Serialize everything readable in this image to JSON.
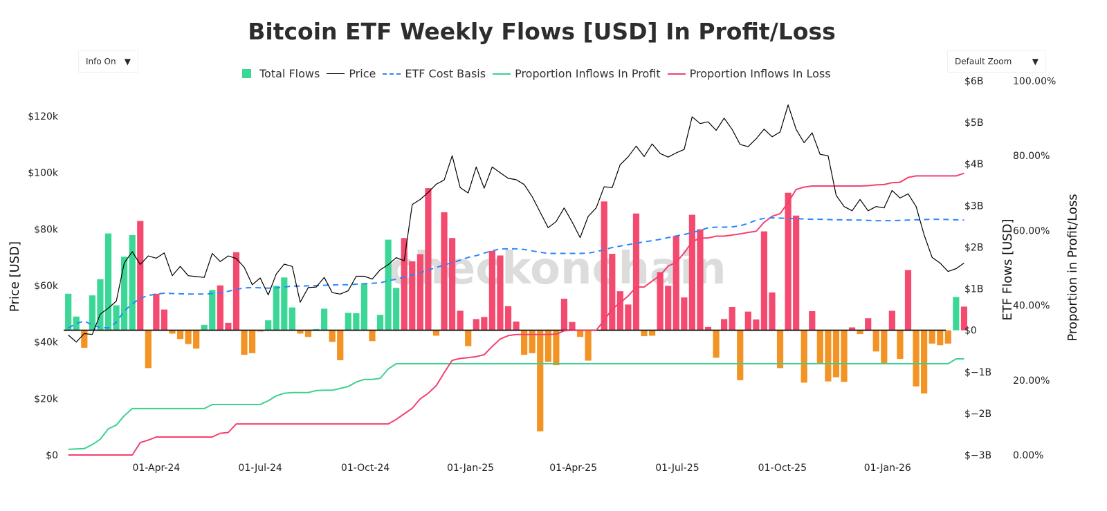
{
  "title": "Bitcoin ETF Weekly Flows [USD] In Profit/Loss",
  "controls": {
    "info": {
      "label": "Info On",
      "icon": "triangle-down-icon"
    },
    "zoom": {
      "label": "Default Zoom",
      "icon": "triangle-down-icon"
    }
  },
  "legend": [
    "Total Flows",
    "Price",
    "ETF Cost Basis",
    "Proportion Inflows In Profit",
    "Proportion Inflows In Loss"
  ],
  "watermark": "checkonchain",
  "colors": {
    "green": "#3ad796",
    "red": "#f44a6f",
    "orange": "#f39324",
    "price": "#000000",
    "cost_basis": "#2a86ff",
    "profit_line": "#3bd18f",
    "loss_line": "#f43f6d"
  },
  "chart_data": {
    "type": "bar+line",
    "title": "Bitcoin ETF Weekly Flows [USD] In Profit/Loss",
    "axes": {
      "y_left": {
        "label": "Price [USD]",
        "unit": "k",
        "ticks": [
          "$0",
          "$20k",
          "$40k",
          "$60k",
          "$80k",
          "$100k",
          "$120k"
        ],
        "tick_values": [
          0,
          20,
          40,
          60,
          80,
          100,
          120
        ],
        "range": [
          0,
          132.5
        ]
      },
      "y_right": {
        "label": "ETF Flows [USD]",
        "unit": "B",
        "ticks": [
          "$−3B",
          "$−2B",
          "$−1B",
          "$0",
          "$1B",
          "$2B",
          "$3B",
          "$4B",
          "$5B",
          "$6B"
        ],
        "tick_values": [
          -3,
          -2,
          -1,
          0,
          1,
          2,
          3,
          4,
          5,
          6
        ],
        "range": [
          -3,
          6
        ]
      },
      "y_right2": {
        "label": "Proportion in Profit/Loss",
        "ticks": [
          "0.00%",
          "20.00%",
          "40.00%",
          "60.00%",
          "80.00%",
          "100.00%"
        ],
        "tick_values": [
          0,
          20,
          40,
          60,
          80,
          100
        ],
        "range": [
          0,
          100
        ]
      },
      "x": {
        "ticks": [
          "01-Apr-24",
          "01-Jul-24",
          "01-Oct-24",
          "01-Jan-25",
          "01-Apr-25",
          "01-Jul-25",
          "01-Oct-25",
          "01-Jan-26"
        ],
        "tick_dates": [
          "2024-04-01",
          "2024-07-01",
          "2024-10-01",
          "2025-01-01",
          "2025-04-01",
          "2025-07-01",
          "2025-10-01",
          "2026-01-01"
        ]
      }
    },
    "x": [
      "2024-01-15",
      "2024-01-22",
      "2024-01-29",
      "2024-02-05",
      "2024-02-12",
      "2024-02-19",
      "2024-02-26",
      "2024-03-04",
      "2024-03-11",
      "2024-03-18",
      "2024-03-25",
      "2024-04-01",
      "2024-04-08",
      "2024-04-15",
      "2024-04-22",
      "2024-04-29",
      "2024-05-06",
      "2024-05-13",
      "2024-05-20",
      "2024-05-27",
      "2024-06-03",
      "2024-06-10",
      "2024-06-17",
      "2024-06-24",
      "2024-07-01",
      "2024-07-08",
      "2024-07-15",
      "2024-07-22",
      "2024-07-29",
      "2024-08-05",
      "2024-08-12",
      "2024-08-19",
      "2024-08-26",
      "2024-09-02",
      "2024-09-09",
      "2024-09-16",
      "2024-09-23",
      "2024-09-30",
      "2024-10-07",
      "2024-10-14",
      "2024-10-21",
      "2024-10-28",
      "2024-11-04",
      "2024-11-11",
      "2024-11-18",
      "2024-11-25",
      "2024-12-02",
      "2024-12-09",
      "2024-12-16",
      "2024-12-23",
      "2024-12-30",
      "2025-01-06",
      "2025-01-13",
      "2025-01-20",
      "2025-01-27",
      "2025-02-03",
      "2025-02-10",
      "2025-02-17",
      "2025-02-24",
      "2025-03-03",
      "2025-03-10",
      "2025-03-17",
      "2025-03-24",
      "2025-03-31",
      "2025-04-07",
      "2025-04-14",
      "2025-04-21",
      "2025-04-28",
      "2025-05-05",
      "2025-05-12",
      "2025-05-19",
      "2025-05-26",
      "2025-06-02",
      "2025-06-09",
      "2025-06-16",
      "2025-06-23",
      "2025-06-30",
      "2025-07-07",
      "2025-07-14",
      "2025-07-21",
      "2025-07-28",
      "2025-08-04",
      "2025-08-11",
      "2025-08-18",
      "2025-08-25",
      "2025-09-01",
      "2025-09-08",
      "2025-09-15",
      "2025-09-22",
      "2025-09-29",
      "2025-10-06",
      "2025-10-13",
      "2025-10-20",
      "2025-10-27",
      "2025-11-03",
      "2025-11-10",
      "2025-11-17",
      "2025-11-24",
      "2025-12-01",
      "2025-12-08",
      "2025-12-15",
      "2025-12-22",
      "2025-12-29",
      "2026-01-05",
      "2026-01-12",
      "2026-01-19",
      "2026-01-26",
      "2026-02-02",
      "2026-02-09",
      "2026-02-16",
      "2026-02-23",
      "2026-03-02",
      "2026-03-09"
    ],
    "series": [
      {
        "name": "Total Flows",
        "type": "bar",
        "axis": "y_right",
        "values": [
          0.88,
          0.33,
          -0.42,
          0.84,
          1.23,
          2.33,
          0.6,
          1.77,
          2.29,
          2.63,
          -0.91,
          0.88,
          0.5,
          -0.08,
          -0.21,
          -0.33,
          -0.44,
          0.13,
          0.97,
          1.08,
          0.18,
          1.88,
          -0.59,
          -0.55,
          -0.03,
          0.24,
          1.07,
          1.27,
          0.55,
          -0.08,
          -0.16,
          0.03,
          0.52,
          -0.28,
          -0.72,
          0.42,
          0.41,
          1.13,
          -0.26,
          0.37,
          2.18,
          1.02,
          2.22,
          1.66,
          1.83,
          3.42,
          -0.13,
          2.84,
          2.22,
          0.47,
          -0.38,
          0.27,
          0.32,
          1.91,
          1.8,
          0.58,
          0.21,
          -0.59,
          -0.55,
          -2.43,
          -0.76,
          -0.84,
          0.76,
          0.2,
          -0.16,
          -0.73,
          0,
          3.1,
          1.84,
          0.94,
          0.62,
          2.81,
          -0.14,
          -0.13,
          1.4,
          1.07,
          2.27,
          0.79,
          2.78,
          2.43,
          0.08,
          -0.66,
          0.27,
          0.56,
          -1.2,
          0.45,
          0.26,
          2.38,
          0.91,
          -0.91,
          3.31,
          2.76,
          -1.26,
          0.46,
          -0.8,
          -1.23,
          -1.13,
          -1.24,
          0.07,
          -0.09,
          0.29,
          -0.51,
          -0.8,
          0.47,
          -0.69,
          1.45,
          -1.35,
          -1.52,
          -0.32,
          -0.36,
          -0.32,
          0.8,
          0.57
        ],
        "bar_colors": [
          "green",
          "green",
          "orange",
          "green",
          "green",
          "green",
          "green",
          "green",
          "green",
          "red",
          "orange",
          "red",
          "red",
          "orange",
          "orange",
          "orange",
          "orange",
          "green",
          "green",
          "red",
          "red",
          "red",
          "orange",
          "orange",
          "orange",
          "green",
          "green",
          "green",
          "green",
          "orange",
          "orange",
          "green",
          "green",
          "orange",
          "orange",
          "green",
          "green",
          "green",
          "orange",
          "green",
          "green",
          "green",
          "red",
          "red",
          "red",
          "red",
          "orange",
          "red",
          "red",
          "red",
          "orange",
          "red",
          "red",
          "red",
          "red",
          "red",
          "red",
          "orange",
          "orange",
          "orange",
          "orange",
          "orange",
          "red",
          "red",
          "orange",
          "orange",
          "red",
          "red",
          "red",
          "red",
          "red",
          "red",
          "orange",
          "orange",
          "red",
          "red",
          "red",
          "red",
          "red",
          "red",
          "red",
          "orange",
          "red",
          "red",
          "orange",
          "red",
          "red",
          "red",
          "red",
          "orange",
          "red",
          "red",
          "orange",
          "red",
          "orange",
          "orange",
          "orange",
          "orange",
          "red",
          "orange",
          "red",
          "orange",
          "orange",
          "red",
          "orange",
          "red",
          "orange",
          "orange",
          "orange",
          "orange",
          "orange",
          "green",
          "red"
        ]
      },
      {
        "name": "Price",
        "type": "line",
        "axis": "y_left",
        "values": [
          42.5,
          40,
          43,
          42.7,
          49.9,
          52,
          54.5,
          68,
          72,
          67.5,
          70.5,
          69.7,
          71.6,
          63.5,
          66.8,
          63.5,
          63.2,
          62.9,
          71.4,
          68.5,
          70.5,
          69.6,
          66.5,
          60.3,
          62.7,
          56.7,
          64.1,
          67.6,
          66.8,
          54.1,
          59.3,
          59.5,
          62.9,
          57.5,
          57,
          58.2,
          63.3,
          63.3,
          62.3,
          65.6,
          67.4,
          69.9,
          68.8,
          88.7,
          90.5,
          93,
          95.9,
          97.4,
          106,
          94.7,
          92.8,
          102,
          94.5,
          102,
          100,
          98,
          97.5,
          95.8,
          91.5,
          86,
          80.5,
          82.7,
          87.5,
          82.5,
          77,
          84.5,
          87.5,
          95,
          94.7,
          102.8,
          105.6,
          109.4,
          105.7,
          110.2,
          106.8,
          105.5,
          107,
          108.2,
          119.8,
          117.4,
          118,
          115,
          119.3,
          115.3,
          110,
          109.2,
          112,
          115.4,
          112.7,
          114.4,
          124,
          115.3,
          110.6,
          114.1,
          106.5,
          106,
          92,
          88,
          86.5,
          90.5,
          86.5,
          88,
          87.5,
          93.7,
          91,
          92.5,
          88,
          78,
          70,
          68,
          65,
          66,
          68
        ]
      },
      {
        "name": "ETF Cost Basis",
        "type": "line",
        "axis": "y_left",
        "values": [
          45,
          46.5,
          47.5,
          46,
          45.2,
          45,
          47,
          51,
          53.5,
          55.5,
          56.5,
          57,
          57.3,
          57.2,
          57.1,
          57,
          57,
          57,
          57.2,
          57.5,
          58,
          58.6,
          59.2,
          59.3,
          59.2,
          59.1,
          59.2,
          59.5,
          59.8,
          59.8,
          59.9,
          60,
          60.1,
          60.2,
          60.3,
          60.3,
          60.5,
          60.7,
          60.8,
          61,
          61.7,
          62.3,
          63,
          63.8,
          64.6,
          65.5,
          66.4,
          67.3,
          68.1,
          69,
          70,
          70.6,
          71.5,
          72.3,
          73,
          73,
          73,
          72.8,
          72.3,
          71.8,
          71.4,
          71.4,
          71.4,
          71.4,
          71.4,
          71.5,
          72,
          72.7,
          73.5,
          74,
          74.5,
          75,
          75.5,
          75.9,
          76.4,
          77,
          77.6,
          78.1,
          78.8,
          79.5,
          80.5,
          80.7,
          80.7,
          80.8,
          81.2,
          82,
          83.2,
          83.8,
          84,
          83.9,
          83.8,
          83.7,
          83.6,
          83.5,
          83.5,
          83.4,
          83.3,
          83.3,
          83.2,
          83.2,
          83.1,
          83,
          83,
          83,
          83.1,
          83.2,
          83.3,
          83.4,
          83.5,
          83.5,
          83.4,
          83.3,
          83.2
        ]
      },
      {
        "name": "Proportion Inflows In Profit",
        "type": "line",
        "axis": "y_right2",
        "values": [
          1.5,
          1.6,
          1.7,
          2.8,
          4.2,
          7,
          8,
          10.5,
          12.4,
          12.4,
          12.4,
          12.4,
          12.4,
          12.4,
          12.4,
          12.4,
          12.4,
          12.4,
          13.5,
          13.5,
          13.5,
          13.5,
          13.5,
          13.5,
          13.5,
          14.5,
          15.8,
          16.5,
          16.7,
          16.7,
          16.7,
          17.2,
          17.3,
          17.3,
          17.8,
          18.3,
          19.5,
          20.2,
          20.2,
          20.5,
          23,
          24.4,
          24.4,
          24.4,
          24.4,
          24.4,
          24.4,
          24.4,
          24.4,
          24.4,
          24.4,
          24.4,
          24.4,
          24.4,
          24.4,
          24.4,
          24.4,
          24.4,
          24.4,
          24.4,
          24.4,
          24.4,
          24.4,
          24.4,
          24.4,
          24.4,
          24.4,
          24.4,
          24.4,
          24.4,
          24.4,
          24.4,
          24.4,
          24.4,
          24.4,
          24.4,
          24.4,
          24.4,
          24.4,
          24.4,
          24.4,
          24.4,
          24.4,
          24.4,
          24.4,
          24.4,
          24.4,
          24.4,
          24.4,
          24.4,
          24.4,
          24.4,
          24.4,
          24.4,
          24.4,
          24.4,
          24.4,
          24.4,
          24.4,
          24.4,
          24.4,
          24.4,
          24.4,
          24.4,
          24.4,
          24.4,
          24.4,
          24.4,
          24.4,
          24.4,
          24.4,
          25.7,
          25.7
        ]
      },
      {
        "name": "Proportion Inflows In Loss",
        "type": "line",
        "axis": "y_right2",
        "values": [
          0,
          0,
          0,
          0,
          0,
          0,
          0,
          0,
          0,
          3.3,
          4,
          4.8,
          4.8,
          4.8,
          4.8,
          4.8,
          4.8,
          4.8,
          4.8,
          5.8,
          6,
          8.3,
          8.3,
          8.3,
          8.3,
          8.3,
          8.3,
          8.3,
          8.3,
          8.3,
          8.3,
          8.3,
          8.3,
          8.3,
          8.3,
          8.3,
          8.3,
          8.3,
          8.3,
          8.3,
          8.3,
          9.5,
          11,
          12.5,
          15,
          16.5,
          18.5,
          22,
          25.3,
          25.8,
          26,
          26.3,
          26.8,
          29,
          31,
          31.9,
          32.2,
          32.2,
          32.2,
          32.2,
          32.2,
          32.3,
          33.2,
          33.3,
          33.3,
          33.3,
          33.3,
          36,
          39,
          40.7,
          42.5,
          44.9,
          44.9,
          46.5,
          48,
          50.5,
          51.5,
          54,
          57,
          58,
          58,
          58.5,
          58.5,
          58.8,
          59.1,
          59.5,
          59.8,
          62.2,
          63.8,
          64.5,
          67.5,
          71,
          71.6,
          71.9,
          71.9,
          71.9,
          71.9,
          71.9,
          71.9,
          71.9,
          72,
          72.2,
          72.3,
          72.8,
          72.9,
          74.2,
          74.6,
          74.6,
          74.6,
          74.6,
          74.6,
          74.6,
          75.3
        ]
      }
    ],
    "grid": false,
    "legend_position": "top"
  }
}
